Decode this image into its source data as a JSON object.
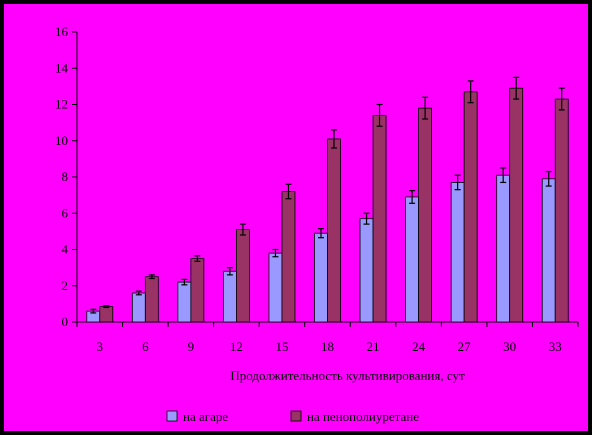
{
  "colors": {
    "frame": "#000000",
    "background": "#ff00ff",
    "series_agar": "#9999ff",
    "series_foam": "#993366",
    "axis": "#000000"
  },
  "chart_data": {
    "type": "bar",
    "title": "",
    "xlabel": "Продолжительность культивирования, сут",
    "ylabel": "",
    "ylim": [
      0,
      16
    ],
    "yticks": [
      0,
      2,
      4,
      6,
      8,
      10,
      12,
      14,
      16
    ],
    "grid": false,
    "legend_position": "bottom",
    "categories": [
      "3",
      "6",
      "9",
      "12",
      "15",
      "18",
      "21",
      "24",
      "27",
      "30",
      "33"
    ],
    "series": [
      {
        "name": "на агаре",
        "color": "#9999ff",
        "values": [
          0.6,
          1.6,
          2.2,
          2.8,
          3.8,
          4.9,
          5.7,
          6.9,
          7.7,
          8.1,
          7.9
        ],
        "errors": [
          0.1,
          0.1,
          0.15,
          0.2,
          0.2,
          0.25,
          0.3,
          0.35,
          0.4,
          0.4,
          0.4
        ]
      },
      {
        "name": "на пенополиуретане",
        "color": "#993366",
        "values": [
          0.85,
          2.5,
          3.5,
          5.1,
          7.2,
          10.1,
          11.4,
          11.8,
          12.7,
          12.9,
          12.3
        ],
        "errors": [
          0.05,
          0.1,
          0.15,
          0.3,
          0.4,
          0.5,
          0.6,
          0.6,
          0.6,
          0.6,
          0.6
        ]
      }
    ]
  }
}
